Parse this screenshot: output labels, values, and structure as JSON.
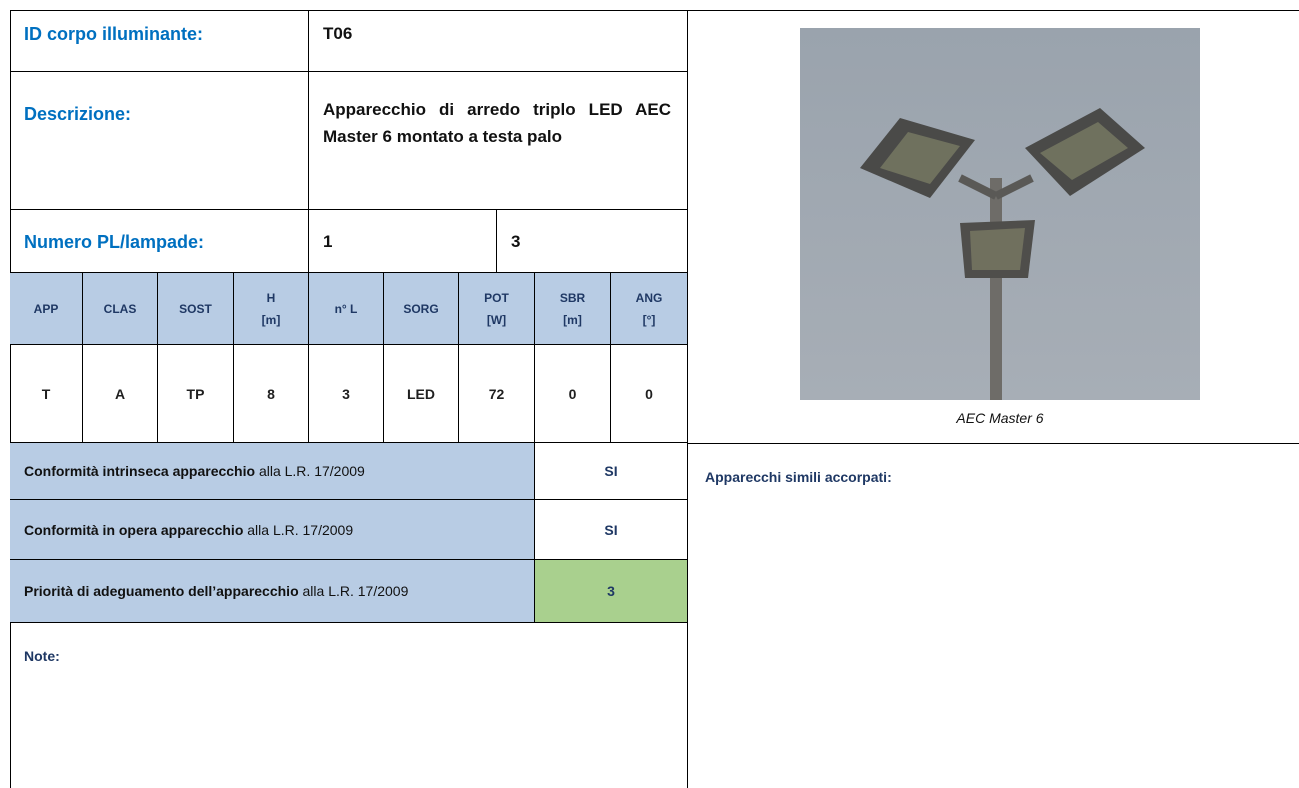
{
  "header": {
    "id_label": "ID corpo illuminante:",
    "id_value": "T06",
    "description_label": "Descrizione:",
    "description": "Apparecchio di arredo triplo LED AEC Master 6 montato a testa palo",
    "count_label": "Numero PL/lampade:",
    "count_pl": 1,
    "count_lamps": 3
  },
  "table": {
    "columns": [
      "APP",
      "CLAS",
      "SOST",
      "H\n[m]",
      "n° L",
      "SORG",
      "POT\n[W]",
      "SBR\n[m]",
      "ANG\n[°]"
    ],
    "rows": [
      [
        "T",
        "A",
        "TP",
        8,
        3,
        "LED",
        72,
        0,
        0
      ]
    ]
  },
  "compliance": [
    {
      "label_bold": "Conformità intrinseca apparecchio",
      "label_rest": "alla L.R. 17/2009",
      "value": "SI"
    },
    {
      "label_bold": "Conformità in opera apparecchio",
      "label_rest": "alla L.R. 17/2009",
      "value": "SI"
    },
    {
      "label_bold": "Priorità di adeguamento dell’apparecchio",
      "label_rest": "alla L.R. 17/2009",
      "value": 3
    }
  ],
  "notes_label": "Note:",
  "photo": {
    "caption": "AEC Master 6"
  },
  "similar_label": "Apparecchi simili accorpati:"
}
